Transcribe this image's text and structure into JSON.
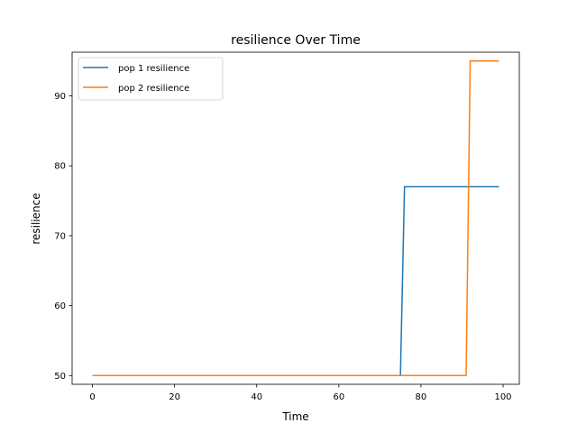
{
  "chart_data": {
    "type": "line",
    "title": "resilience Over Time",
    "xlabel": "Time",
    "ylabel": "resilience",
    "xlim": [
      -4.95,
      103.95
    ],
    "ylim": [
      48.75,
      96.25
    ],
    "xticks": [
      0,
      20,
      40,
      60,
      80,
      100
    ],
    "yticks": [
      50,
      60,
      70,
      80,
      90
    ],
    "grid": false,
    "legend_position": "top-left",
    "series": [
      {
        "name": "pop 1 resilience",
        "color": "#1f77b4",
        "points": [
          [
            0,
            50
          ],
          [
            75,
            50
          ],
          [
            76,
            77
          ],
          [
            99,
            77
          ]
        ]
      },
      {
        "name": "pop 2 resilience",
        "color": "#ff7f0e",
        "points": [
          [
            0,
            50
          ],
          [
            91,
            50
          ],
          [
            92,
            95
          ],
          [
            99,
            95
          ]
        ]
      }
    ]
  }
}
